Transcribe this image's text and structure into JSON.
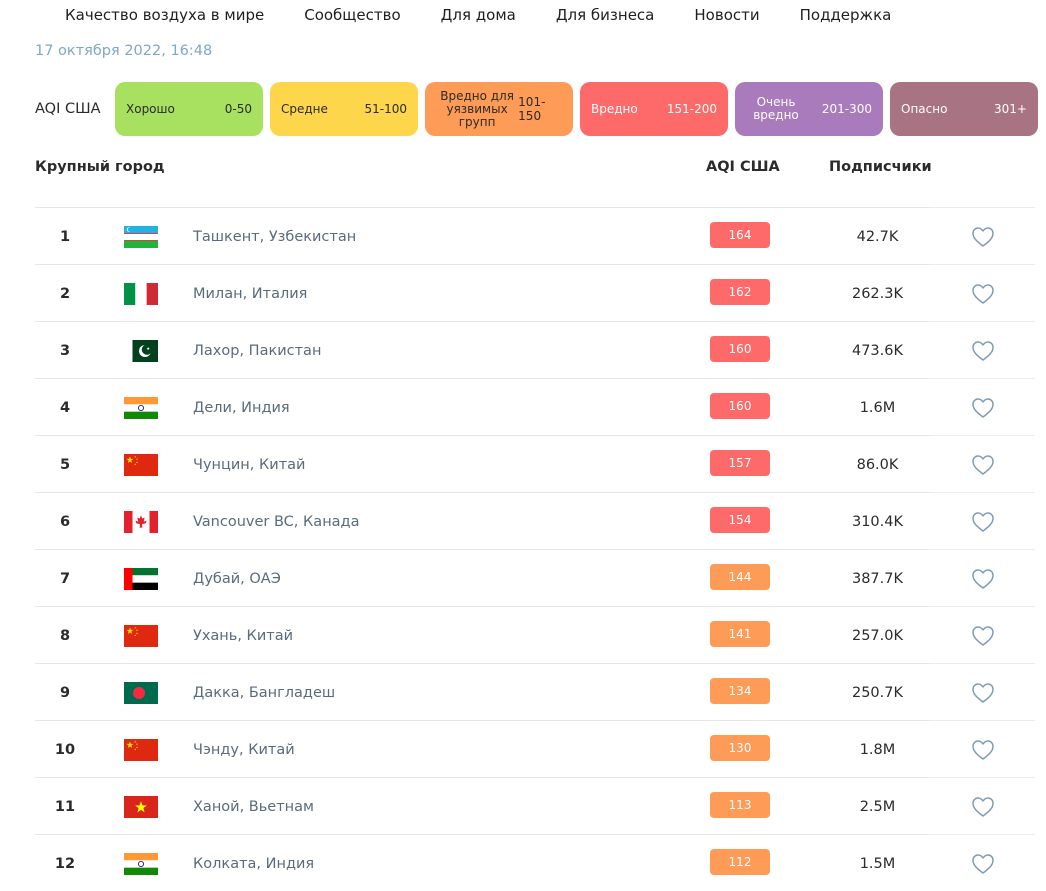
{
  "nav": [
    {
      "label": "Качество воздуха в мире"
    },
    {
      "label": "Сообщество"
    },
    {
      "label": "Для дома"
    },
    {
      "label": "Для бизнеса"
    },
    {
      "label": "Новости"
    },
    {
      "label": "Поддержка"
    }
  ],
  "timestamp": "17 октября 2022, 16:48",
  "legend": {
    "label": "AQI США",
    "items": [
      {
        "name": "Хорошо",
        "range": "0-50",
        "color": "#a8e05f"
      },
      {
        "name": "Средне",
        "range": "51-100",
        "color": "#fdd64b"
      },
      {
        "name": "Вредно для уязвимых групп",
        "range": "101-150",
        "color": "#fe9b57"
      },
      {
        "name": "Вредно",
        "range": "151-200",
        "color": "#fe6a69"
      },
      {
        "name": "Очень вредно",
        "range": "201-300",
        "color": "#a97abc"
      },
      {
        "name": "Опасно",
        "range": "301+",
        "color": "#a87383"
      }
    ]
  },
  "table": {
    "headers": {
      "city": "Крупный город",
      "aqi": "AQI США",
      "followers": "Подписчики"
    },
    "rows": [
      {
        "rank": "1",
        "flag": "uz",
        "city": "Ташкент, Узбекистан",
        "aqi": "164",
        "level": "unhealthy",
        "followers": "42.7K"
      },
      {
        "rank": "2",
        "flag": "it",
        "city": "Милан, Италия",
        "aqi": "162",
        "level": "unhealthy",
        "followers": "262.3K"
      },
      {
        "rank": "3",
        "flag": "pk",
        "city": "Лахор, Пакистан",
        "aqi": "160",
        "level": "unhealthy",
        "followers": "473.6K"
      },
      {
        "rank": "4",
        "flag": "in",
        "city": "Дели, Индия",
        "aqi": "160",
        "level": "unhealthy",
        "followers": "1.6M"
      },
      {
        "rank": "5",
        "flag": "cn",
        "city": "Чунцин, Китай",
        "aqi": "157",
        "level": "unhealthy",
        "followers": "86.0K"
      },
      {
        "rank": "6",
        "flag": "ca",
        "city": "Vancouver BC, Канада",
        "aqi": "154",
        "level": "unhealthy",
        "followers": "310.4K"
      },
      {
        "rank": "7",
        "flag": "ae",
        "city": "Дубай, ОАЭ",
        "aqi": "144",
        "level": "sensitive",
        "followers": "387.7K"
      },
      {
        "rank": "8",
        "flag": "cn",
        "city": "Ухань, Китай",
        "aqi": "141",
        "level": "sensitive",
        "followers": "257.0K"
      },
      {
        "rank": "9",
        "flag": "bd",
        "city": "Дакка, Бангладеш",
        "aqi": "134",
        "level": "sensitive",
        "followers": "250.7K"
      },
      {
        "rank": "10",
        "flag": "cn",
        "city": "Чэнду, Китай",
        "aqi": "130",
        "level": "sensitive",
        "followers": "1.8M"
      },
      {
        "rank": "11",
        "flag": "vn",
        "city": "Ханой, Вьетнам",
        "aqi": "113",
        "level": "sensitive",
        "followers": "2.5M"
      },
      {
        "rank": "12",
        "flag": "in",
        "city": "Колката, Индия",
        "aqi": "112",
        "level": "sensitive",
        "followers": "1.5M"
      }
    ]
  }
}
